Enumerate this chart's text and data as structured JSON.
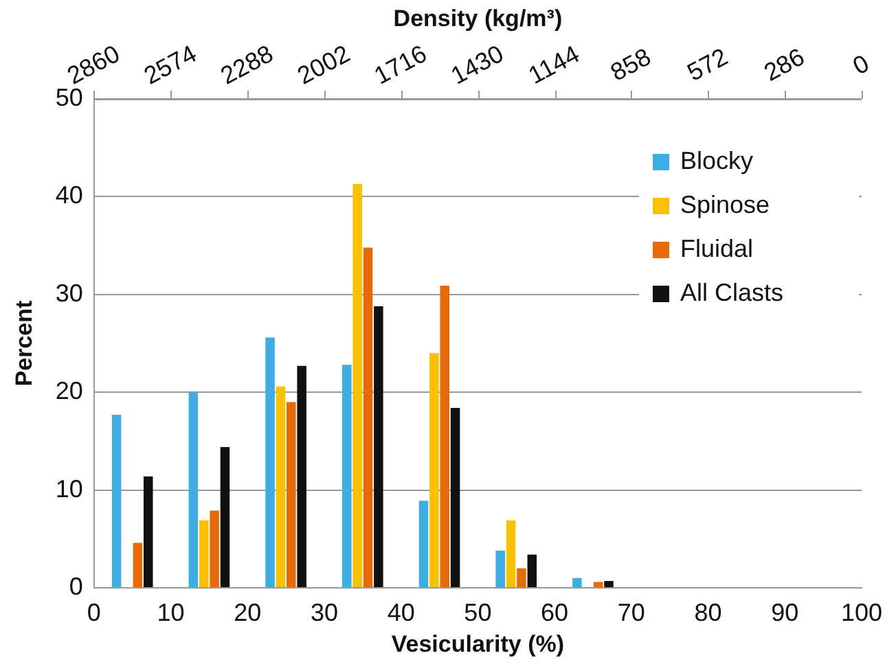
{
  "chart_data": {
    "type": "bar",
    "xlabel": "Vesicularity (%)",
    "ylabel": "Percent",
    "x2label": "Density (kg/m³)",
    "x": [
      5,
      15,
      25,
      35,
      45,
      55,
      65
    ],
    "series": [
      {
        "name": "Blocky",
        "color": "#3daee3",
        "values": [
          17.7,
          20.0,
          25.6,
          22.8,
          8.9,
          3.8,
          1.0
        ]
      },
      {
        "name": "Spinose",
        "color": "#fbc000",
        "values": [
          0,
          6.9,
          20.6,
          41.3,
          24.0,
          6.9,
          0
        ]
      },
      {
        "name": "Fluidal",
        "color": "#e46a0a",
        "values": [
          4.6,
          7.9,
          19.0,
          34.8,
          30.9,
          2.0,
          0.6
        ]
      },
      {
        "name": "All Clasts",
        "color": "#111111",
        "values": [
          11.4,
          14.4,
          22.7,
          28.8,
          18.4,
          3.4,
          0.7
        ]
      }
    ],
    "xlim": [
      0,
      100
    ],
    "xticks": [
      0,
      10,
      20,
      30,
      40,
      50,
      60,
      70,
      80,
      90,
      100
    ],
    "x2lim": [
      2860,
      0
    ],
    "x2ticks": [
      2860,
      2574,
      2288,
      2002,
      1716,
      1430,
      1144,
      858,
      572,
      286,
      0
    ],
    "ylim": [
      0,
      50
    ],
    "yticks": [
      0,
      10,
      20,
      30,
      40,
      50
    ],
    "grid": "y",
    "legend": "top right"
  }
}
